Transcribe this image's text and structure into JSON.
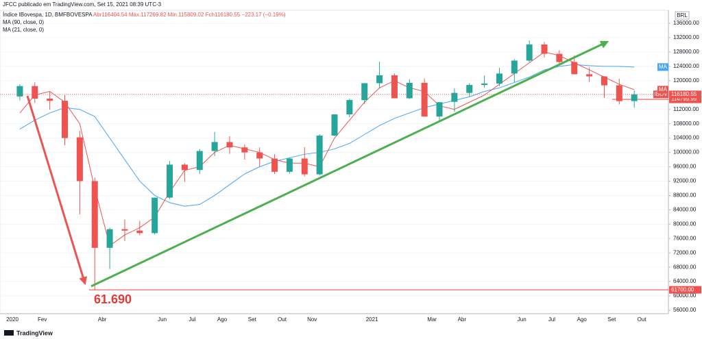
{
  "header": {
    "publisher": "JFCC publicado em TradingView.com, Set 15, 2021 08:39 UTC-3",
    "brand": "TradingView"
  },
  "chart_data": {
    "type": "candlestick",
    "symbol": "Índice IBovespa, 1D, BMFBOVESPA",
    "ohlc_legend": [
      "Abr116404.54",
      "Máx.117269.82",
      "Mín.115809.02",
      "Fch116180.55",
      "−223.17 (−0.19%)"
    ],
    "currency": "BRL",
    "symbol_tag": "IBOV",
    "annotation": "61.690",
    "categories": [
      "2020",
      null,
      "Fev",
      null,
      null,
      null,
      "Abr",
      null,
      null,
      null,
      "Jun",
      null,
      "Jul",
      null,
      "Ago",
      null,
      "Set",
      null,
      "Out",
      null,
      "Nov",
      null,
      null,
      null,
      "2021",
      null,
      null,
      null,
      "Mar",
      null,
      "Abr",
      null,
      null,
      null,
      "Jun",
      null,
      "Jul",
      null,
      "Ago",
      null,
      "Set",
      null,
      "Out"
    ],
    "candles": {
      "up_color": "#26a69a",
      "down_color": "#ef5350",
      "open": [
        115600,
        118500,
        115000,
        114400,
        104200,
        92000,
        73400,
        78600,
        78200,
        77500,
        87400,
        96600,
        95100,
        100400,
        102900,
        101400,
        100000,
        98300,
        94600,
        98300,
        93900,
        104700,
        110600,
        114600,
        119300,
        121500,
        115100,
        119400,
        110000,
        114100,
        116600,
        118800,
        119200,
        122000,
        125600,
        130100,
        127500,
        125200,
        121800,
        121200,
        118700,
        114300,
        null
      ],
      "high": [
        119000,
        119600,
        117000,
        116000,
        106000,
        93000,
        79000,
        81300,
        80900,
        87400,
        97600,
        97000,
        101000,
        105700,
        104500,
        102200,
        101400,
        99500,
        98600,
        101500,
        105100,
        110600,
        115000,
        119400,
        125300,
        122000,
        120400,
        120600,
        114000,
        117800,
        119300,
        121400,
        123600,
        126000,
        131200,
        130800,
        128500,
        127000,
        123700,
        121300,
        120500,
        117300,
        null
      ],
      "low": [
        114500,
        113800,
        111900,
        102000,
        82700,
        61690,
        67500,
        75300,
        76900,
        77100,
        87000,
        91800,
        94000,
        99000,
        99600,
        98000,
        96100,
        94000,
        94100,
        93300,
        93600,
        104500,
        109800,
        113500,
        117800,
        115100,
        114900,
        110000,
        108400,
        111400,
        115600,
        118000,
        118500,
        119600,
        125200,
        126500,
        124500,
        121800,
        119700,
        115200,
        113400,
        112500,
        null
      ],
      "close": [
        118500,
        115000,
        114400,
        104000,
        92000,
        73400,
        78600,
        78200,
        77500,
        87400,
        96600,
        95100,
        100400,
        102900,
        101400,
        100000,
        98300,
        94600,
        98300,
        93900,
        104700,
        110600,
        114600,
        119300,
        121500,
        115100,
        119400,
        110000,
        114000,
        116600,
        118800,
        119200,
        122000,
        125600,
        130100,
        127500,
        125200,
        121800,
        121200,
        118700,
        114300,
        116180.55,
        null
      ]
    },
    "series": [
      {
        "name": "MA (90, close, 0)",
        "label": "MA",
        "color": "#42a5f5",
        "values": [
          106500,
          109000,
          111000,
          112500,
          112000,
          110000,
          104000,
          98000,
          92000,
          88000,
          86000,
          85000,
          85500,
          88000,
          91000,
          94000,
          96000,
          97500,
          98500,
          99500,
          100000,
          101000,
          102500,
          105000,
          107500,
          109500,
          111000,
          112500,
          113500,
          114500,
          115500,
          117000,
          118000,
          119500,
          121000,
          123000,
          124000,
          124500,
          124200,
          124000,
          124000,
          123800,
          null
        ]
      },
      {
        "name": "MA (21, close, 0)",
        "label": "MA",
        "color": "#ef5350",
        "values": [
          111000,
          116000,
          117000,
          114000,
          108000,
          90000,
          74000,
          77000,
          79000,
          82000,
          89000,
          95000,
          96000,
          100000,
          102000,
          101000,
          100000,
          98000,
          97000,
          97000,
          96000,
          104000,
          109000,
          114000,
          118000,
          120000,
          118000,
          117000,
          113000,
          112000,
          114000,
          116000,
          119000,
          122000,
          125000,
          128000,
          127000,
          125000,
          123000,
          121000,
          119000,
          117500,
          null
        ]
      }
    ],
    "levels": [
      {
        "value": 61700,
        "label": "61700.00"
      },
      114799.99
    ],
    "last_price": 116180.55,
    "ylim": [
      55050,
      139630
    ],
    "yticks": [
      {
        "value": 56000,
        "label": "56000.00"
      },
      {
        "value": 60000,
        "label": "60000.00"
      },
      {
        "value": 64000,
        "label": "64000.00"
      },
      {
        "value": 68000,
        "label": "68000.00"
      },
      {
        "value": 72000,
        "label": "72000.00"
      },
      {
        "value": 76000,
        "label": "76000.00"
      },
      {
        "value": 80000,
        "label": "80000.00"
      },
      {
        "value": 84000,
        "label": "84000.00"
      },
      {
        "value": 88000,
        "label": "88000.00"
      },
      {
        "value": 92000,
        "label": "92000.00"
      },
      {
        "value": 96000,
        "label": "96000.00"
      },
      {
        "value": 100000,
        "label": "100000.00"
      },
      {
        "value": 104000,
        "label": "104000.00"
      },
      {
        "value": 108000,
        "label": "108000.00"
      },
      {
        "value": 112000,
        "label": "112000.00"
      },
      {
        "value": 116000,
        "label": "116000.00"
      },
      {
        "value": 120000,
        "label": "120000.00"
      },
      {
        "value": 124000,
        "label": "124000.00"
      },
      {
        "value": 128000,
        "label": "128000.00"
      },
      {
        "value": 132000,
        "label": "132000.00"
      },
      {
        "value": 136000,
        "label": "136000.00"
      }
    ],
    "grid": true
  }
}
